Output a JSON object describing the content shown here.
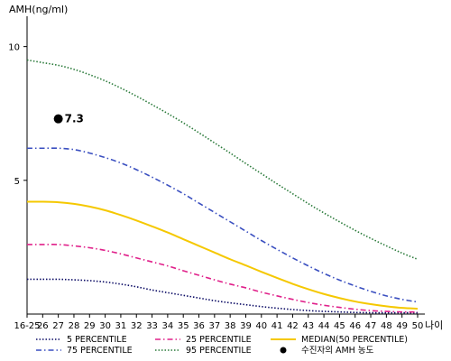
{
  "chart_data": {
    "type": "line",
    "ylabel": "AMH(ng/ml)",
    "xunit_label": "나이",
    "ylim": [
      0,
      11
    ],
    "yticks": [
      5,
      10
    ],
    "grid": false,
    "legend_position": "bottom",
    "x": [
      "16-25",
      "26",
      "27",
      "28",
      "29",
      "30",
      "31",
      "32",
      "33",
      "34",
      "35",
      "36",
      "37",
      "38",
      "39",
      "40",
      "41",
      "42",
      "43",
      "44",
      "45",
      "46",
      "47",
      "48",
      "49",
      "50"
    ],
    "series": [
      {
        "name": "5 PERCENTILE",
        "color": "#0d0d66",
        "dash": "dotted",
        "values": [
          1.3,
          1.3,
          1.3,
          1.28,
          1.25,
          1.2,
          1.12,
          1.02,
          0.9,
          0.8,
          0.7,
          0.6,
          0.5,
          0.42,
          0.35,
          0.28,
          0.22,
          0.17,
          0.13,
          0.1,
          0.08,
          0.06,
          0.05,
          0.05,
          0.05,
          0.05
        ]
      },
      {
        "name": "25 PERCENTILE",
        "color": "#e0208a",
        "dash": "dashdot",
        "values": [
          2.6,
          2.6,
          2.6,
          2.55,
          2.48,
          2.38,
          2.25,
          2.1,
          1.95,
          1.8,
          1.62,
          1.45,
          1.28,
          1.12,
          0.98,
          0.82,
          0.68,
          0.55,
          0.43,
          0.33,
          0.25,
          0.18,
          0.13,
          0.1,
          0.08,
          0.08
        ]
      },
      {
        "name": "MEDIAN(50 PERCENTILE)",
        "color": "#f5c800",
        "dash": "solid",
        "values": [
          4.2,
          4.2,
          4.18,
          4.12,
          4.02,
          3.88,
          3.7,
          3.5,
          3.28,
          3.05,
          2.8,
          2.55,
          2.3,
          2.05,
          1.82,
          1.58,
          1.35,
          1.13,
          0.93,
          0.75,
          0.6,
          0.47,
          0.37,
          0.29,
          0.23,
          0.2
        ]
      },
      {
        "name": "75 PERCENTILE",
        "color": "#3a4fc0",
        "dash": "dashdot",
        "values": [
          6.2,
          6.2,
          6.2,
          6.15,
          6.02,
          5.85,
          5.65,
          5.4,
          5.12,
          4.82,
          4.5,
          4.15,
          3.8,
          3.45,
          3.1,
          2.75,
          2.42,
          2.1,
          1.8,
          1.52,
          1.27,
          1.05,
          0.85,
          0.68,
          0.55,
          0.45
        ]
      },
      {
        "name": "95 PERCENTILE",
        "color": "#2a7a3a",
        "dash": "dotted",
        "values": [
          9.5,
          9.4,
          9.3,
          9.15,
          8.95,
          8.72,
          8.45,
          8.15,
          7.83,
          7.5,
          7.15,
          6.78,
          6.4,
          6.02,
          5.63,
          5.25,
          4.87,
          4.5,
          4.13,
          3.78,
          3.45,
          3.13,
          2.83,
          2.55,
          2.28,
          2.05
        ]
      }
    ],
    "points": [
      {
        "name": "수진자의 AMH 농도",
        "x": "27",
        "y": 7.3,
        "label": "7.3",
        "color": "#000000"
      }
    ]
  }
}
